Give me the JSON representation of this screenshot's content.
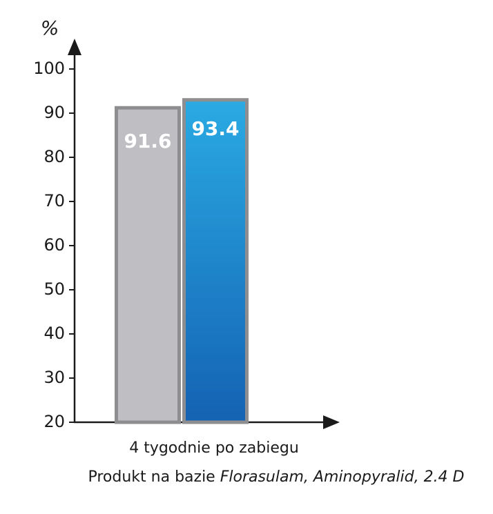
{
  "chart_data": {
    "type": "bar",
    "y_label": "%",
    "categories": [
      "4 tygodnie po zabiegu"
    ],
    "caption": [
      {
        "text": "Produkt na bazie ",
        "italic": false
      },
      {
        "text": "Florasulam, Aminopyralid, 2.4 D",
        "italic": true
      }
    ],
    "series": [
      {
        "color": "#bebec3",
        "values": [
          91.6
        ]
      },
      {
        "color": "#1f8fd6",
        "values": [
          93.4
        ]
      }
    ],
    "ylim": [
      20,
      100
    ],
    "yticks": [
      20,
      30,
      40,
      50,
      60,
      70,
      80,
      90,
      100
    ]
  }
}
